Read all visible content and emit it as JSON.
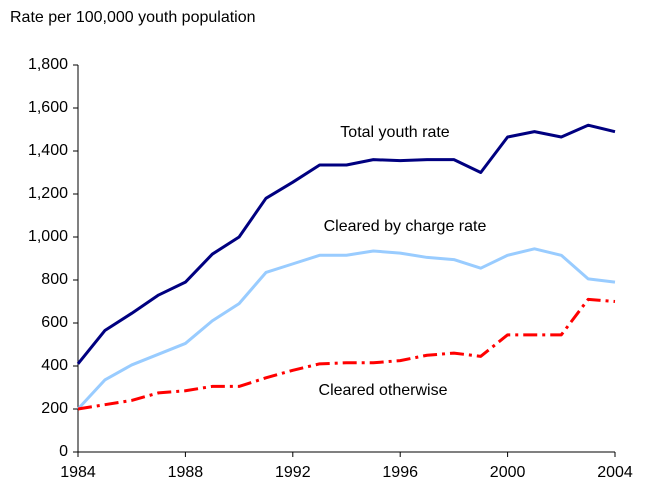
{
  "chart_data": {
    "type": "line",
    "y_axis_label": "Rate per 100,000 youth population",
    "x": [
      1984,
      1985,
      1986,
      1987,
      1988,
      1989,
      1990,
      1991,
      1992,
      1993,
      1994,
      1995,
      1996,
      1997,
      1998,
      1999,
      2000,
      2001,
      2002,
      2003,
      2004
    ],
    "xlim": [
      1984,
      2004
    ],
    "xticks": [
      1984,
      1988,
      1992,
      1996,
      2000,
      2004
    ],
    "ylim": [
      0,
      1800
    ],
    "yticks": [
      0,
      200,
      400,
      600,
      800,
      {
        "value": 1000,
        "label": "1,000"
      },
      {
        "value": 1200,
        "label": "1,200"
      },
      {
        "value": 1400,
        "label": "1,400"
      },
      {
        "value": 1600,
        "label": "1,600"
      },
      {
        "value": 1800,
        "label": "1,800"
      }
    ],
    "grid": false,
    "series": [
      {
        "name": "Total youth rate",
        "color": "#000080",
        "dash": false,
        "values": [
          410,
          565,
          645,
          730,
          790,
          920,
          1000,
          1180,
          1255,
          1335,
          1335,
          1360,
          1355,
          1360,
          1360,
          1300,
          1465,
          1490,
          1465,
          1520,
          1490
        ]
      },
      {
        "name": "Cleared by charge rate",
        "color": "#99ccff",
        "dash": false,
        "values": [
          200,
          335,
          405,
          455,
          505,
          610,
          690,
          835,
          875,
          915,
          915,
          935,
          925,
          905,
          895,
          855,
          915,
          945,
          915,
          805,
          790
        ]
      },
      {
        "name": "Cleared otherwise",
        "color": "#ff0000",
        "dash": true,
        "values": [
          200,
          220,
          240,
          275,
          285,
          305,
          305,
          345,
          380,
          410,
          415,
          415,
          425,
          450,
          460,
          445,
          545,
          545,
          545,
          710,
          700
        ]
      }
    ]
  }
}
